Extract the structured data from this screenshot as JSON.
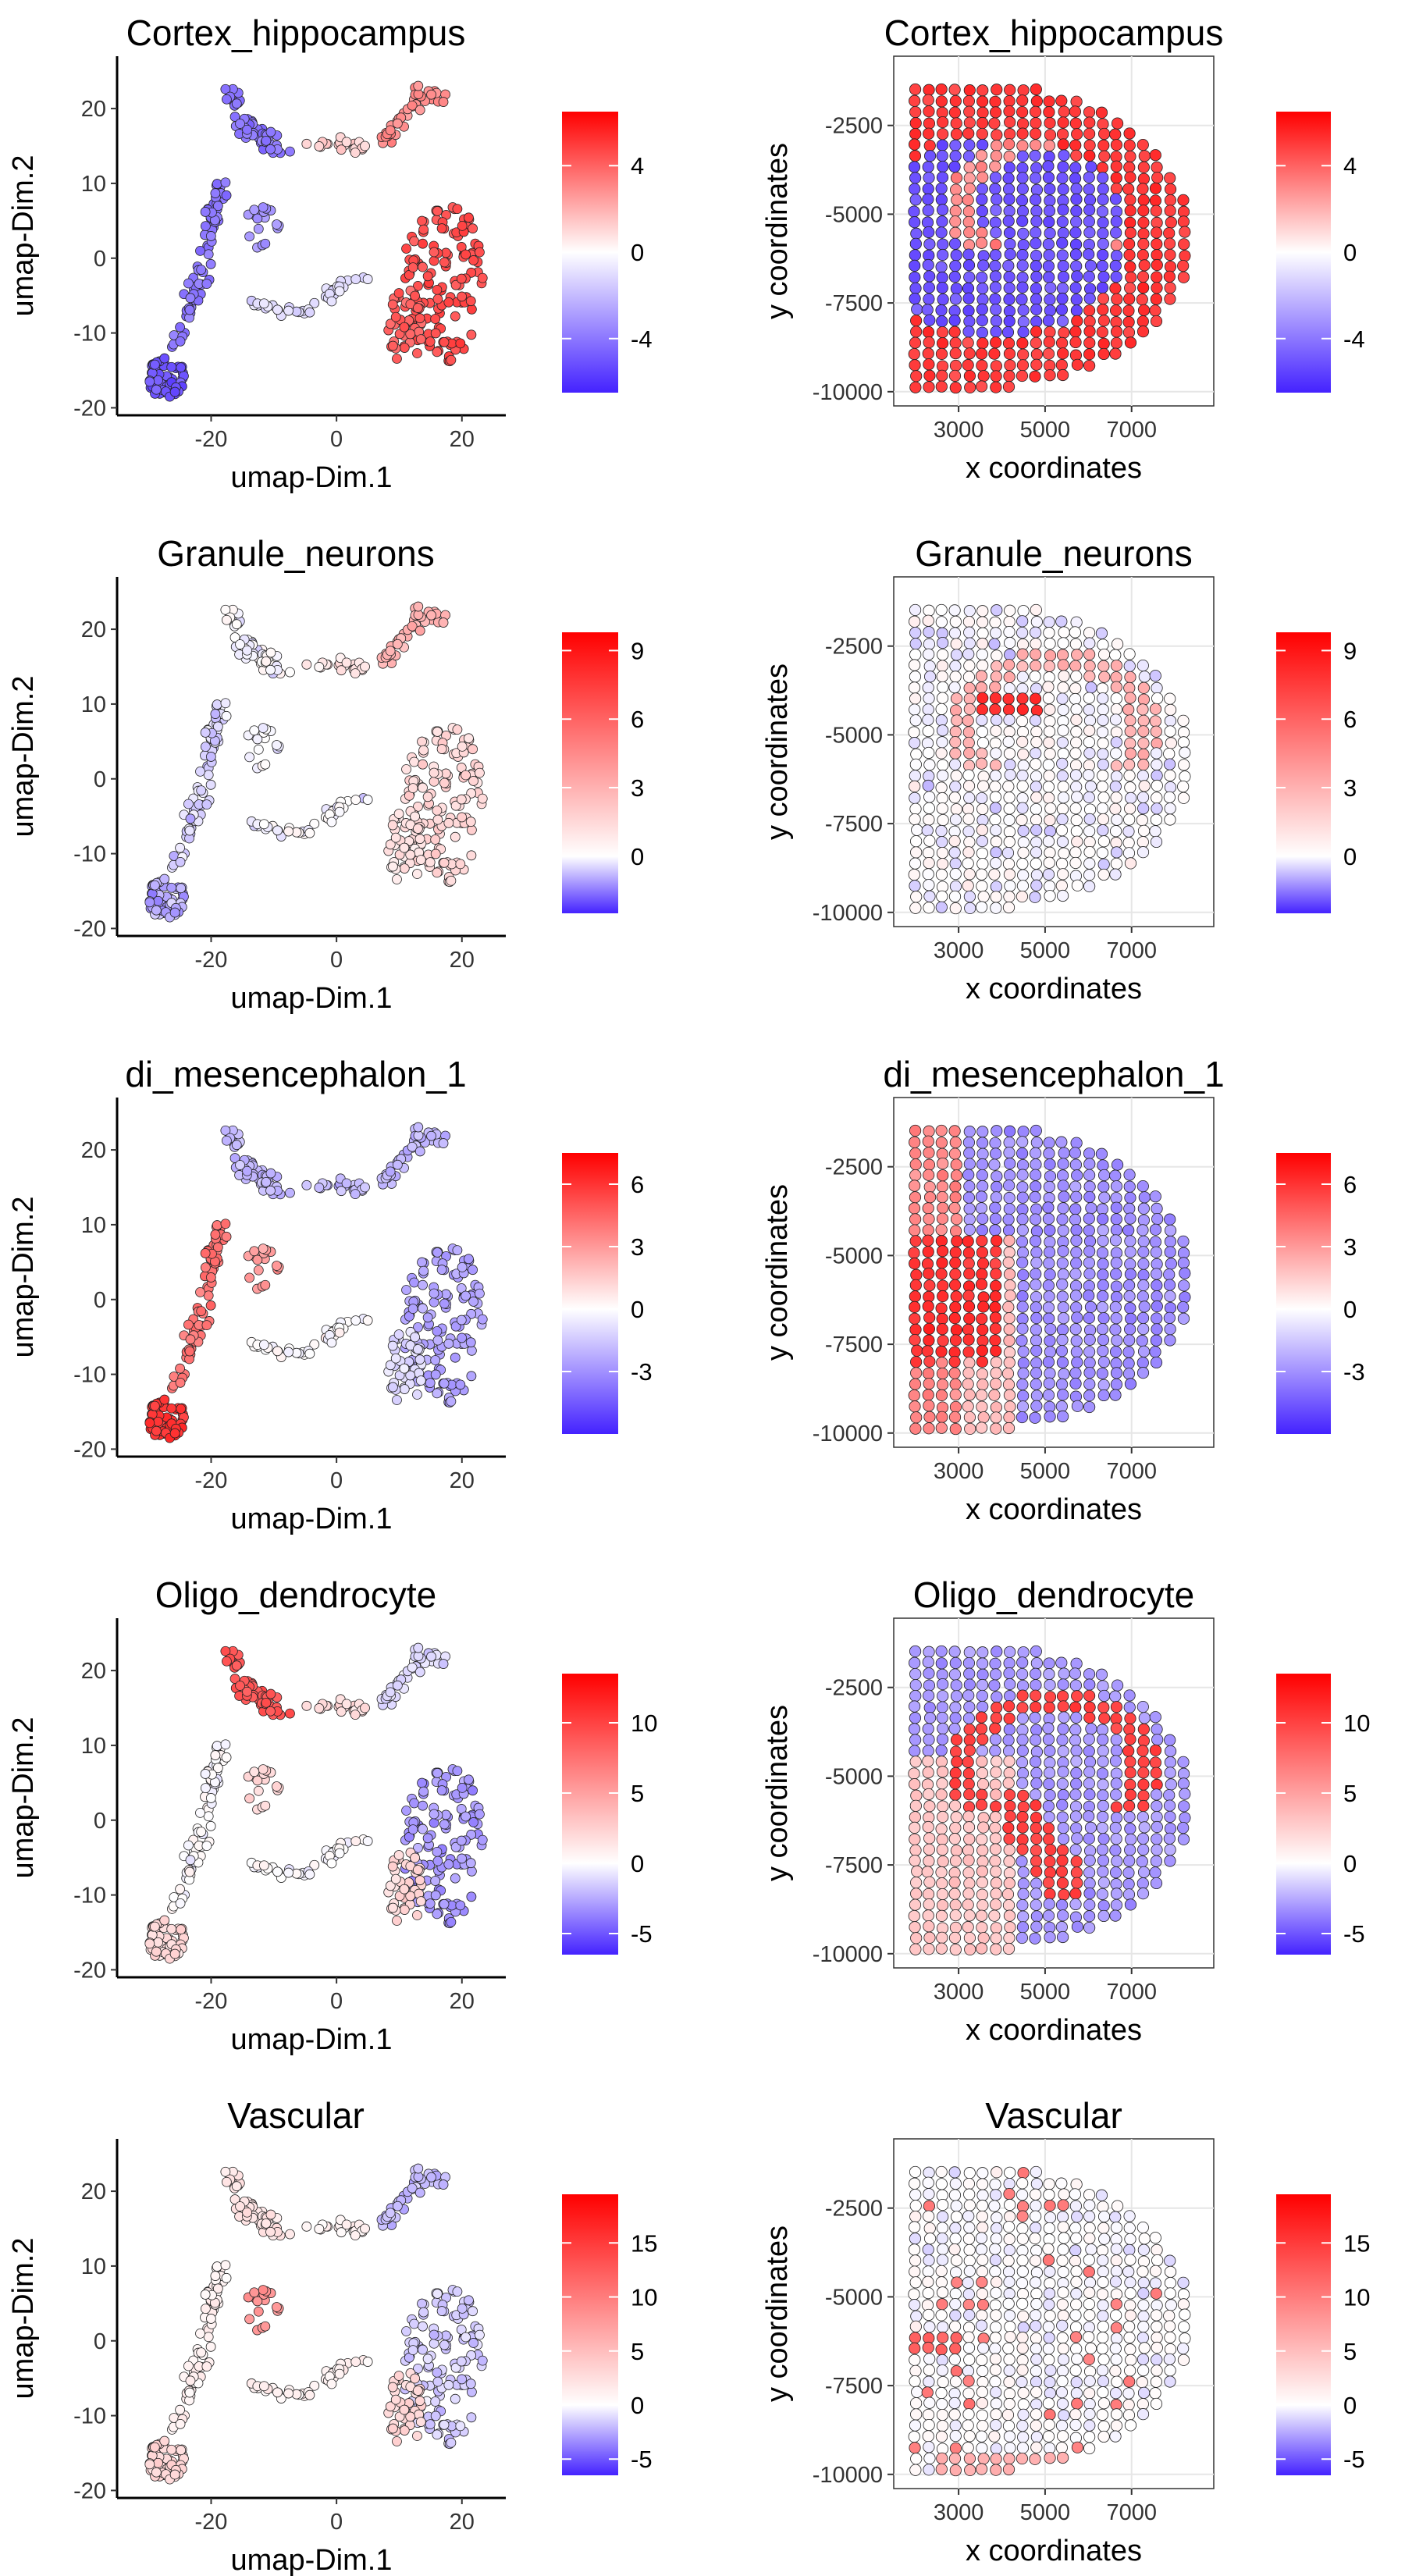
{
  "colors": {
    "low": "#4422ff",
    "mid": "#ffffff",
    "high": "#ff0000",
    "point_stroke": "#222222"
  },
  "chart_data": [
    {
      "type": "scatter",
      "kind": "umap",
      "title": "Cortex_hippocampus",
      "xlabel": "umap-Dim.1",
      "ylabel": "umap-Dim.2",
      "xticks": [
        -20,
        0,
        20
      ],
      "yticks": [
        -20,
        -10,
        0,
        10,
        20
      ],
      "xlim": [
        -35,
        27
      ],
      "ylim": [
        -21,
        27
      ],
      "color_range": [
        -6.5,
        6.5
      ],
      "colorbar_ticks": [
        4,
        0,
        -4
      ],
      "grid": false
    },
    {
      "type": "scatter",
      "kind": "spatial",
      "title": "Cortex_hippocampus",
      "xlabel": "x coordinates",
      "ylabel": "y coordinates",
      "xticks": [
        3000,
        5000,
        7000
      ],
      "yticks": [
        -2500,
        -5000,
        -7500,
        -10000
      ],
      "xlim": [
        1500,
        8900
      ],
      "ylim": [
        -10400,
        -550
      ],
      "color_range": [
        -6.5,
        6.5
      ],
      "colorbar_ticks": [
        4,
        0,
        -4
      ],
      "grid": true
    },
    {
      "type": "scatter",
      "kind": "umap",
      "title": "Granule_neurons",
      "xlabel": "umap-Dim.1",
      "ylabel": "umap-Dim.2",
      "xticks": [
        -20,
        0,
        20
      ],
      "yticks": [
        -20,
        -10,
        0,
        10,
        20
      ],
      "xlim": [
        -35,
        27
      ],
      "ylim": [
        -21,
        27
      ],
      "color_range": [
        -2.5,
        9.8
      ],
      "colorbar_ticks": [
        9,
        6,
        3,
        0
      ],
      "grid": false
    },
    {
      "type": "scatter",
      "kind": "spatial",
      "title": "Granule_neurons",
      "xlabel": "x coordinates",
      "ylabel": "y coordinates",
      "xticks": [
        3000,
        5000,
        7000
      ],
      "yticks": [
        -2500,
        -5000,
        -7500,
        -10000
      ],
      "xlim": [
        1500,
        8900
      ],
      "ylim": [
        -10400,
        -550
      ],
      "color_range": [
        -2.5,
        9.8
      ],
      "colorbar_ticks": [
        9,
        6,
        3,
        0
      ],
      "grid": true
    },
    {
      "type": "scatter",
      "kind": "umap",
      "title": "di_mesencephalon_1",
      "xlabel": "umap-Dim.1",
      "ylabel": "umap-Dim.2",
      "xticks": [
        -20,
        0,
        20
      ],
      "yticks": [
        -20,
        -10,
        0,
        10,
        20
      ],
      "xlim": [
        -35,
        27
      ],
      "ylim": [
        -21,
        27
      ],
      "color_range": [
        -6,
        7.5
      ],
      "colorbar_ticks": [
        6,
        3,
        0,
        -3
      ],
      "grid": false
    },
    {
      "type": "scatter",
      "kind": "spatial",
      "title": "di_mesencephalon_1",
      "xlabel": "x coordinates",
      "ylabel": "y coordinates",
      "xticks": [
        3000,
        5000,
        7000
      ],
      "yticks": [
        -2500,
        -5000,
        -7500,
        -10000
      ],
      "xlim": [
        1500,
        8900
      ],
      "ylim": [
        -10400,
        -550
      ],
      "color_range": [
        -6,
        7.5
      ],
      "colorbar_ticks": [
        6,
        3,
        0,
        -3
      ],
      "grid": true
    },
    {
      "type": "scatter",
      "kind": "umap",
      "title": "Oligo_dendrocyte",
      "xlabel": "umap-Dim.1",
      "ylabel": "umap-Dim.2",
      "xticks": [
        -20,
        0,
        20
      ],
      "yticks": [
        -20,
        -10,
        0,
        10,
        20
      ],
      "xlim": [
        -35,
        27
      ],
      "ylim": [
        -21,
        27
      ],
      "color_range": [
        -6.5,
        13.5
      ],
      "colorbar_ticks": [
        10,
        5,
        0,
        -5
      ],
      "grid": false
    },
    {
      "type": "scatter",
      "kind": "spatial",
      "title": "Oligo_dendrocyte",
      "xlabel": "x coordinates",
      "ylabel": "y coordinates",
      "xticks": [
        3000,
        5000,
        7000
      ],
      "yticks": [
        -2500,
        -5000,
        -7500,
        -10000
      ],
      "xlim": [
        1500,
        8900
      ],
      "ylim": [
        -10400,
        -550
      ],
      "color_range": [
        -6.5,
        13.5
      ],
      "colorbar_ticks": [
        10,
        5,
        0,
        -5
      ],
      "grid": true
    },
    {
      "type": "scatter",
      "kind": "umap",
      "title": "Vascular",
      "xlabel": "umap-Dim.1",
      "ylabel": "umap-Dim.2",
      "xticks": [
        -20,
        0,
        20
      ],
      "yticks": [
        -20,
        -10,
        0,
        10,
        20
      ],
      "xlim": [
        -35,
        27
      ],
      "ylim": [
        -21,
        27
      ],
      "color_range": [
        -6.5,
        19.5
      ],
      "colorbar_ticks": [
        15,
        10,
        5,
        0,
        -5
      ],
      "grid": false
    },
    {
      "type": "scatter",
      "kind": "spatial",
      "title": "Vascular",
      "xlabel": "x coordinates",
      "ylabel": "y coordinates",
      "xticks": [
        3000,
        5000,
        7000
      ],
      "yticks": [
        -2500,
        -5000,
        -7500,
        -10000
      ],
      "xlim": [
        1500,
        8900
      ],
      "ylim": [
        -10400,
        -550
      ],
      "color_range": [
        -6.5,
        19.5
      ],
      "colorbar_ticks": [
        15,
        10,
        5,
        0,
        -5
      ],
      "grid": true
    }
  ]
}
